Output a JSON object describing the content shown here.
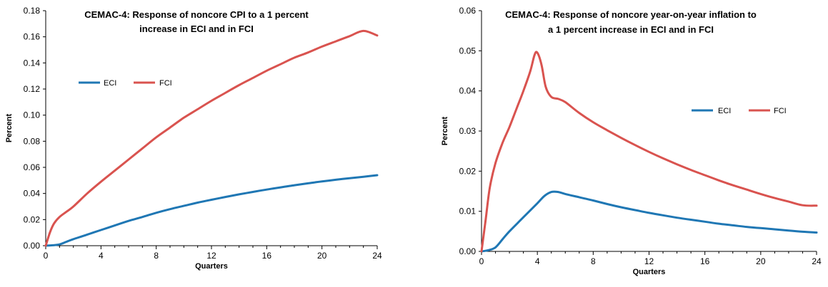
{
  "chart_data": [
    {
      "type": "line",
      "title": [
        "CEMAC-4: Response of noncore CPI to a 1 percent",
        "increase in ECI and in FCI"
      ],
      "xlabel": "Quarters",
      "ylabel": "Percent",
      "xlim": [
        0,
        24
      ],
      "ylim": [
        0,
        0.18
      ],
      "xticks": [
        0,
        4,
        8,
        12,
        16,
        20,
        24
      ],
      "yticks": [
        "0.00",
        "0.02",
        "0.04",
        "0.06",
        "0.08",
        "0.10",
        "0.12",
        "0.14",
        "0.16",
        "0.18"
      ],
      "grid": false,
      "legend_placement": "upper-left",
      "series": [
        {
          "name": "ECI",
          "color": "#1f77b4",
          "x": [
            0,
            0.5,
            1,
            1.5,
            2,
            3,
            4,
            5,
            6,
            7,
            8,
            9,
            10,
            11,
            12,
            13,
            14,
            15,
            16,
            17,
            18,
            19,
            20,
            21,
            22,
            23,
            24
          ],
          "y": [
            0,
            0.0003,
            0.001,
            0.003,
            0.005,
            0.0085,
            0.012,
            0.0155,
            0.019,
            0.022,
            0.0252,
            0.028,
            0.0305,
            0.033,
            0.0352,
            0.0373,
            0.0393,
            0.0412,
            0.043,
            0.0447,
            0.0463,
            0.0478,
            0.0492,
            0.0505,
            0.0517,
            0.0528,
            0.054
          ]
        },
        {
          "name": "FCI",
          "color": "#d9534f",
          "x": [
            0,
            0.3,
            0.6,
            1,
            1.5,
            2,
            3,
            4,
            5,
            6,
            7,
            8,
            9,
            10,
            11,
            12,
            13,
            14,
            15,
            16,
            17,
            18,
            19,
            20,
            21,
            22,
            23,
            24
          ],
          "y": [
            0,
            0.01,
            0.017,
            0.022,
            0.026,
            0.03,
            0.04,
            0.049,
            0.0575,
            0.066,
            0.0745,
            0.083,
            0.0905,
            0.098,
            0.1045,
            0.111,
            0.117,
            0.123,
            0.1285,
            0.134,
            0.139,
            0.144,
            0.148,
            0.1525,
            0.1565,
            0.1605,
            0.1645,
            0.161
          ]
        }
      ]
    },
    {
      "type": "line",
      "title": [
        "CEMAC-4: Response of noncore year-on-year inflation to",
        "a 1 percent increase in ECI and in FCI"
      ],
      "xlabel": "Quarters",
      "ylabel": "Percent",
      "xlim": [
        0,
        24
      ],
      "ylim": [
        0,
        0.06
      ],
      "xticks": [
        0,
        4,
        8,
        12,
        16,
        20,
        24
      ],
      "yticks": [
        "0.00",
        "0.01",
        "0.02",
        "0.03",
        "0.04",
        "0.05",
        "0.06"
      ],
      "grid": false,
      "legend_placement": "right",
      "series": [
        {
          "name": "ECI",
          "color": "#1f77b4",
          "x": [
            0,
            0.5,
            1,
            1.5,
            2,
            3,
            4,
            4.5,
            5,
            5.5,
            6,
            7,
            8,
            9,
            10,
            11,
            12,
            13,
            14,
            15,
            16,
            17,
            18,
            19,
            20,
            21,
            22,
            23,
            24
          ],
          "y": [
            0,
            0.0003,
            0.001,
            0.003,
            0.005,
            0.0085,
            0.012,
            0.0138,
            0.0148,
            0.0148,
            0.0143,
            0.0135,
            0.0127,
            0.0118,
            0.011,
            0.0103,
            0.0096,
            0.009,
            0.0084,
            0.0079,
            0.0074,
            0.0069,
            0.0065,
            0.0061,
            0.0058,
            0.0055,
            0.0052,
            0.0049,
            0.0047
          ]
        },
        {
          "name": "FCI",
          "color": "#d9534f",
          "x": [
            0,
            0.3,
            0.6,
            1,
            1.5,
            2,
            2.5,
            3,
            3.5,
            3.8,
            4,
            4.3,
            4.6,
            5,
            5.5,
            6,
            7,
            8,
            9,
            10,
            11,
            12,
            13,
            14,
            15,
            16,
            17,
            18,
            19,
            20,
            21,
            22,
            23,
            24
          ],
          "y": [
            0,
            0.008,
            0.016,
            0.022,
            0.027,
            0.031,
            0.0355,
            0.04,
            0.045,
            0.049,
            0.0495,
            0.0465,
            0.041,
            0.0385,
            0.038,
            0.0372,
            0.0345,
            0.0322,
            0.0302,
            0.0283,
            0.0265,
            0.0248,
            0.0232,
            0.0217,
            0.0203,
            0.019,
            0.0177,
            0.0165,
            0.0154,
            0.0143,
            0.0133,
            0.0124,
            0.0115,
            0.0114
          ]
        }
      ]
    }
  ]
}
